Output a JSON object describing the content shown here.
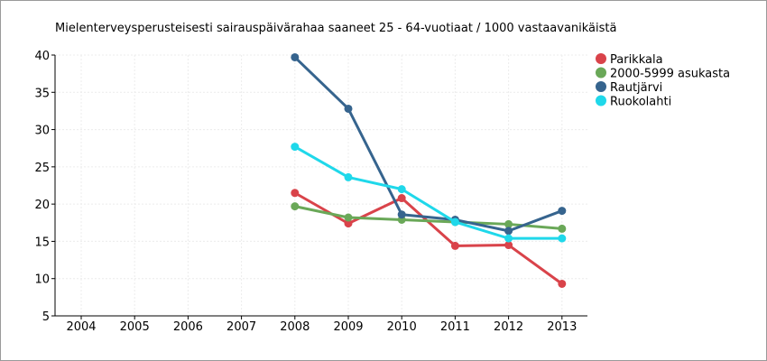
{
  "chart_data": {
    "type": "line",
    "title": "Mielenterveysperusteisesti sairauspäivärahaa saaneet 25 - 64-vuotiaat / 1000 vastaavanikäistä",
    "x": [
      "2004",
      "2005",
      "2006",
      "2007",
      "2008",
      "2009",
      "2010",
      "2011",
      "2012",
      "2013"
    ],
    "ylim": [
      5,
      40
    ],
    "yticks": [
      5,
      10,
      15,
      20,
      25,
      30,
      35,
      40
    ],
    "grid": true,
    "legend_position": "right",
    "series": [
      {
        "name": "Parikkala",
        "color": "#d9434a",
        "values": [
          null,
          null,
          null,
          null,
          21.5,
          17.4,
          20.8,
          14.4,
          14.5,
          9.3
        ]
      },
      {
        "name": "2000-5999 asukasta",
        "color": "#6aa858",
        "values": [
          null,
          null,
          null,
          null,
          19.7,
          18.2,
          17.9,
          17.6,
          17.3,
          16.7
        ]
      },
      {
        "name": "Rautjärvi",
        "color": "#36648e",
        "values": [
          null,
          null,
          null,
          null,
          39.7,
          32.8,
          18.6,
          17.9,
          16.4,
          19.1
        ]
      },
      {
        "name": "Ruokolahti",
        "color": "#1fd8ea",
        "values": [
          null,
          null,
          null,
          null,
          27.7,
          23.6,
          22.0,
          17.6,
          15.4,
          15.4
        ]
      }
    ]
  }
}
